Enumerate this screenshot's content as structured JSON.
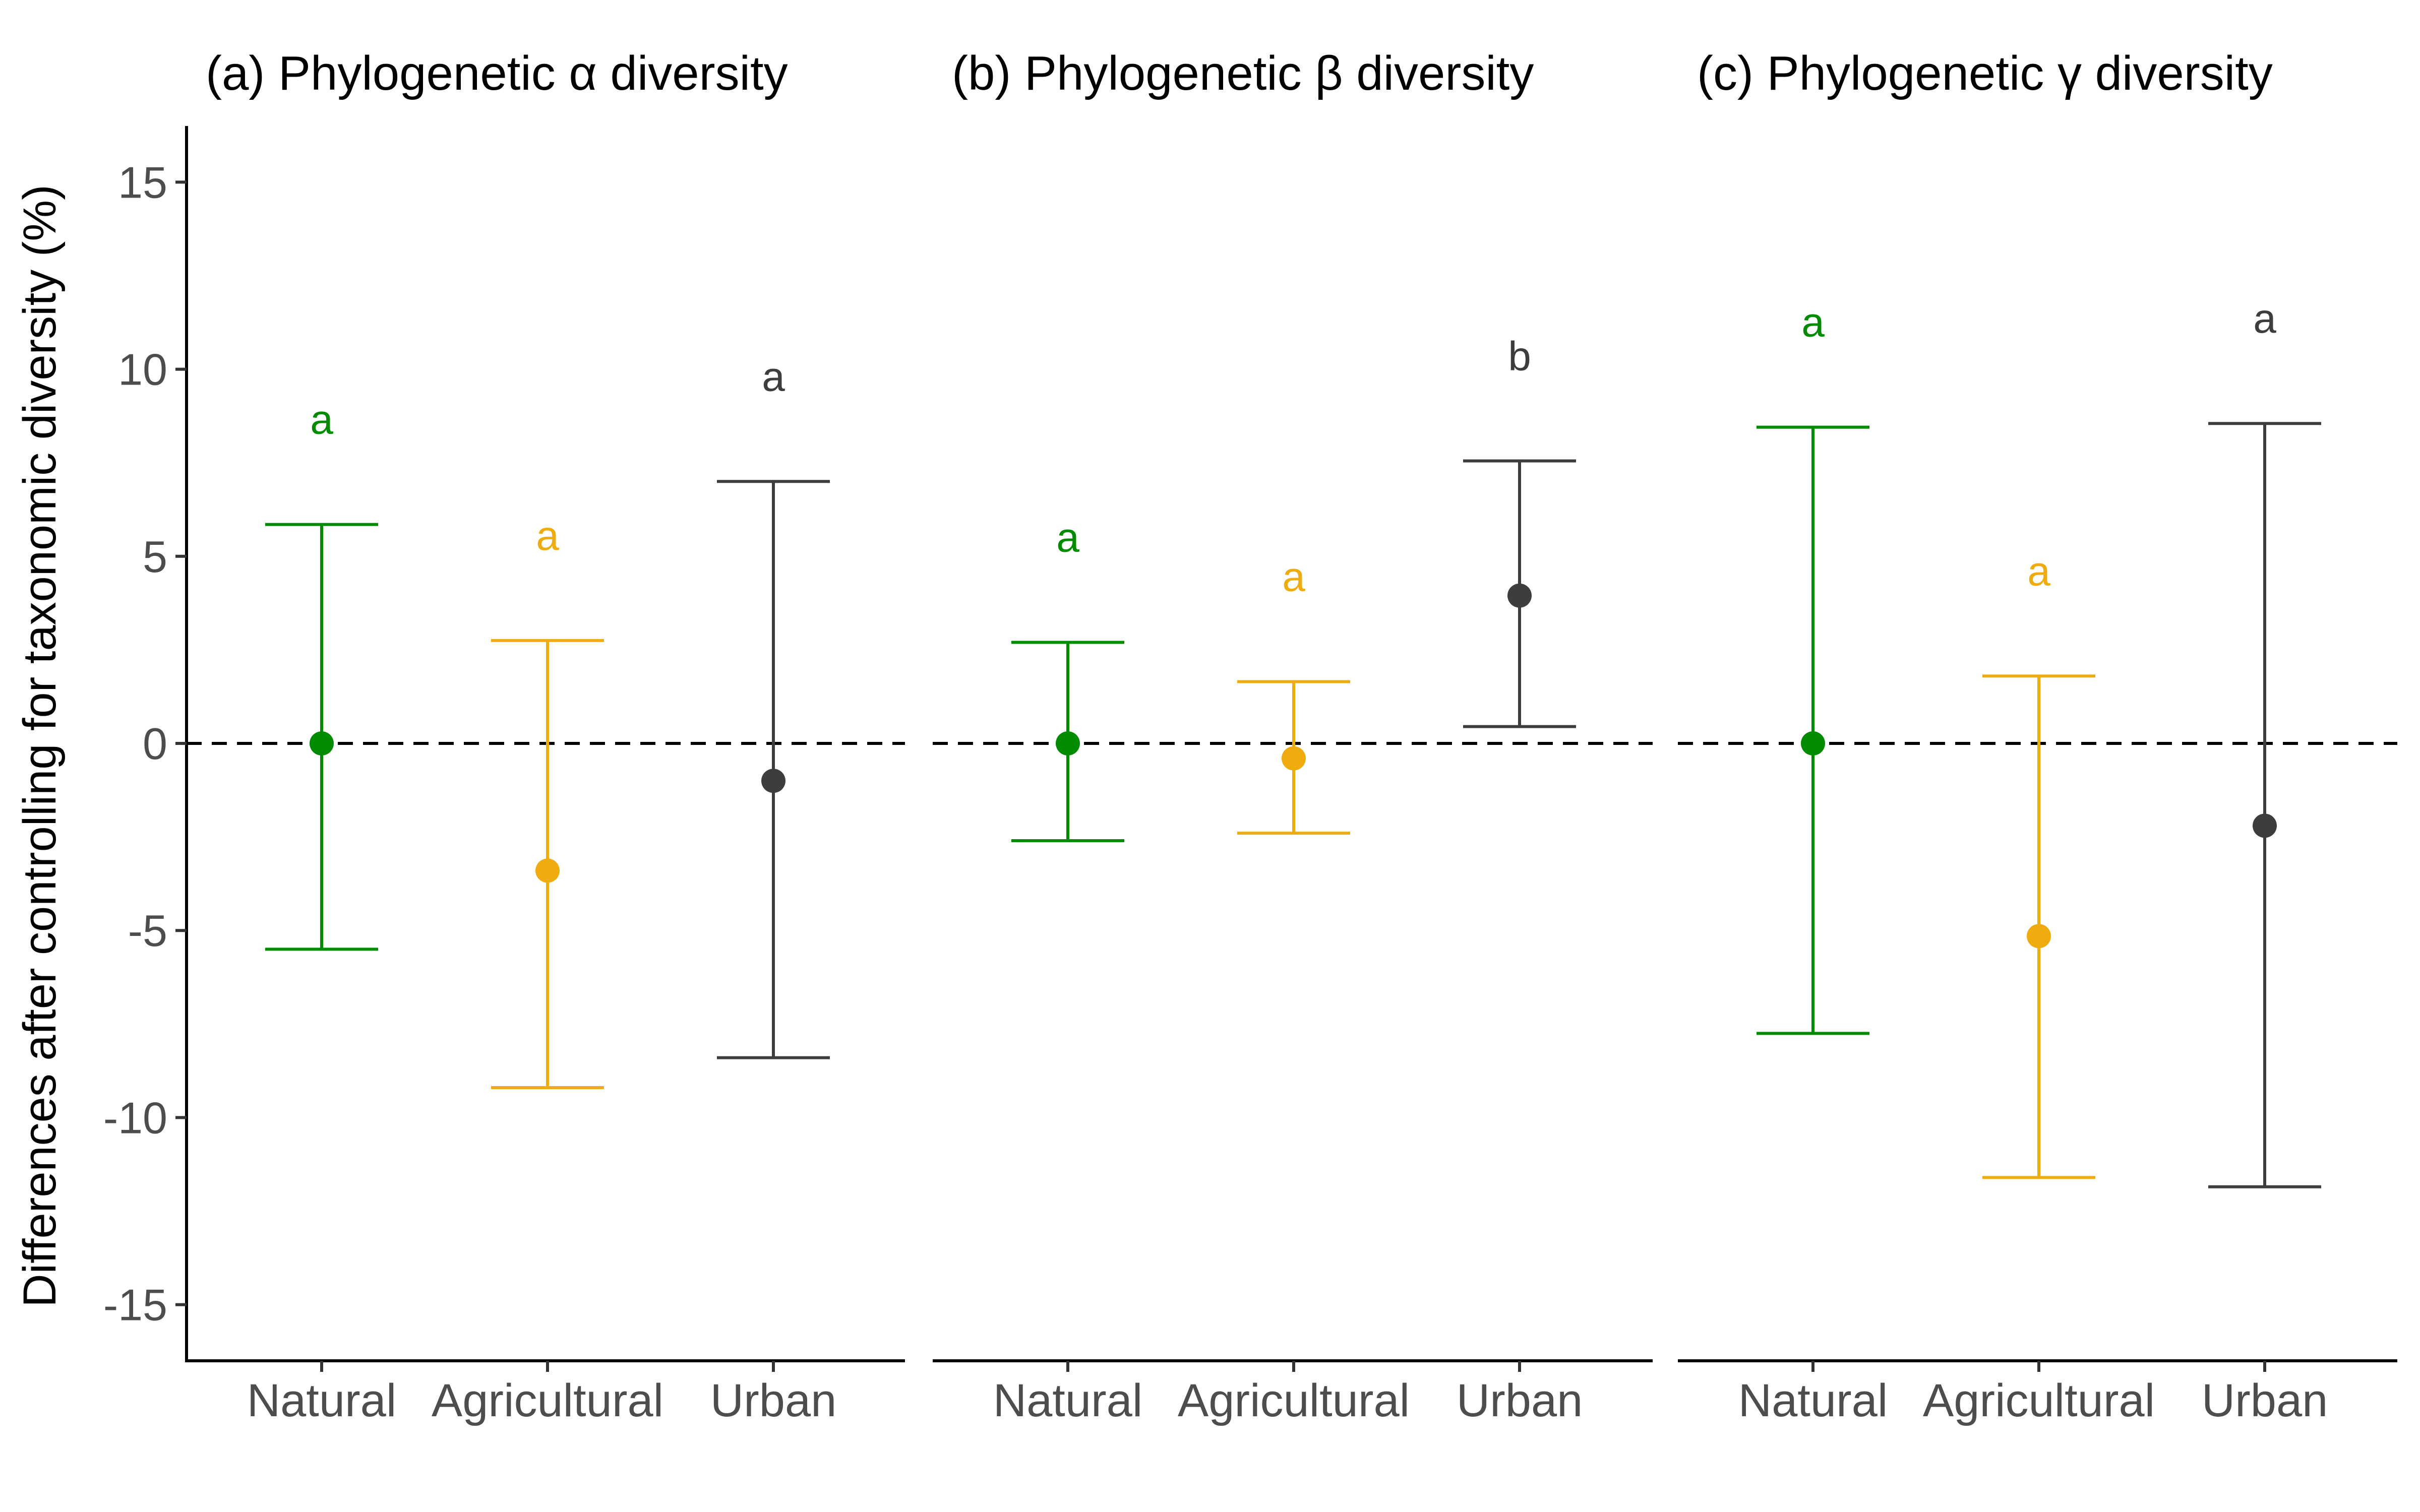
{
  "chart_data": {
    "type": "errorbar",
    "ylabel": "Differences after controlling for taxonomic diversity (%)",
    "ylim": [
      -16.5,
      16.5
    ],
    "yticks": [
      15,
      10,
      5,
      0,
      -5,
      -10,
      -15
    ],
    "ytick_labels": [
      "15",
      "10",
      "5",
      "0",
      "-5",
      "-10",
      "-15"
    ],
    "reference_line": 0,
    "categories": [
      "Natural",
      "Agricultural",
      "Urban"
    ],
    "colors": {
      "Natural": "#008b00",
      "Agricultural": "#efac0f",
      "Urban": "#3d3d3d"
    },
    "panels": [
      {
        "title": "(a) Phylogenetic α diversity",
        "points": [
          {
            "category": "Natural",
            "value": 0.0,
            "lower": -5.5,
            "upper": 5.85,
            "label": "a"
          },
          {
            "category": "Agricultural",
            "value": -3.4,
            "lower": -9.2,
            "upper": 2.75,
            "label": "a"
          },
          {
            "category": "Urban",
            "value": -1.0,
            "lower": -8.4,
            "upper": 7.0,
            "label": "a"
          }
        ]
      },
      {
        "title": "(b) Phylogenetic β diversity",
        "points": [
          {
            "category": "Natural",
            "value": 0.0,
            "lower": -2.6,
            "upper": 2.7,
            "label": "a"
          },
          {
            "category": "Agricultural",
            "value": -0.4,
            "lower": -2.4,
            "upper": 1.65,
            "label": "a"
          },
          {
            "category": "Urban",
            "value": 3.95,
            "lower": 0.45,
            "upper": 7.55,
            "label": "b"
          }
        ]
      },
      {
        "title": "(c) Phylogenetic γ diversity",
        "points": [
          {
            "category": "Natural",
            "value": 0.0,
            "lower": -7.75,
            "upper": 8.45,
            "label": "a"
          },
          {
            "category": "Agricultural",
            "value": -5.15,
            "lower": -11.6,
            "upper": 1.8,
            "label": "a"
          },
          {
            "category": "Urban",
            "value": -2.2,
            "lower": -11.85,
            "upper": 8.55,
            "label": "a"
          }
        ]
      }
    ]
  }
}
